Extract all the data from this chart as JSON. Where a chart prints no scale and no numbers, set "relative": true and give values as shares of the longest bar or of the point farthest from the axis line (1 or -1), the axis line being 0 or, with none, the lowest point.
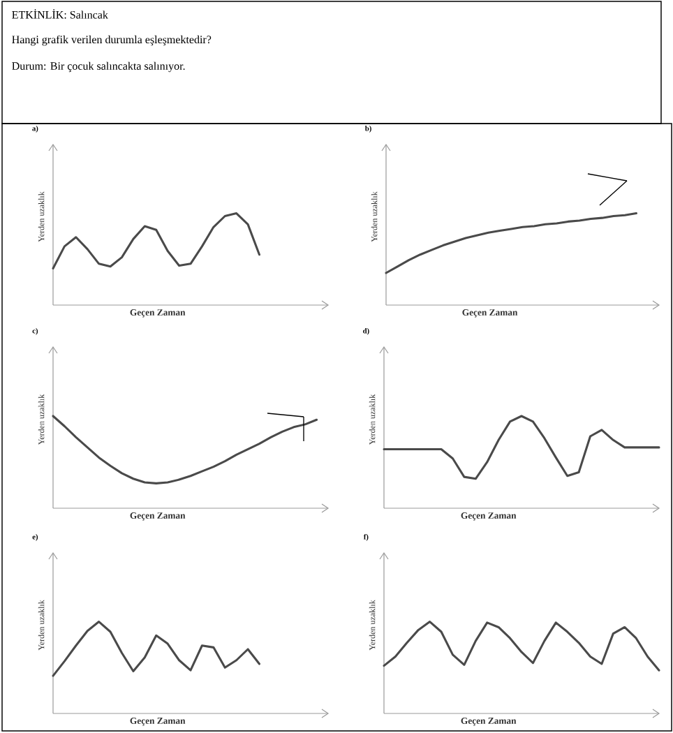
{
  "chart_data": [
    {
      "type": "other",
      "title": "ETKİNLİK: Salıncak",
      "annotations": [
        "Hangi grafik verilen durumla eşleşmektedir?",
        "Durum: Bir çocuk salıncakta salınıyor."
      ]
    },
    {
      "type": "line",
      "title": "a)",
      "xlabel": "Geçen Zaman",
      "ylabel": "Yerden uzaklık",
      "relative": true,
      "tick_labels": false,
      "color": "#4a4a4a",
      "categories": [
        null,
        null,
        null,
        null,
        null,
        null,
        null,
        null,
        null,
        null,
        null,
        null,
        null,
        null,
        null,
        null,
        null,
        null,
        null,
        null,
        null,
        null,
        null,
        null,
        null
      ],
      "values": [
        0.4,
        0.64,
        0.74,
        0.61,
        0.45,
        0.42,
        0.52,
        0.72,
        0.86,
        0.82,
        0.59,
        0.43,
        0.45,
        0.64,
        0.85,
        0.97,
        1.0,
        0.88,
        0.55,
        null,
        null,
        null,
        null,
        null,
        null
      ]
    },
    {
      "type": "line",
      "title": "b)",
      "xlabel": "Geçen Zaman",
      "ylabel": "Yerden uzaklık",
      "relative": true,
      "tick_labels": false,
      "color": "#4a4a4a",
      "categories": [
        null,
        null,
        null,
        null,
        null,
        null,
        null,
        null,
        null,
        null,
        null,
        null,
        null,
        null,
        null,
        null,
        null,
        null,
        null,
        null,
        null,
        null,
        null,
        null,
        null
      ],
      "values": [
        0.35,
        0.42,
        0.49,
        0.55,
        0.6,
        0.65,
        0.69,
        0.73,
        0.76,
        0.79,
        0.81,
        0.83,
        0.85,
        0.86,
        0.88,
        0.89,
        0.91,
        0.92,
        0.94,
        0.95,
        0.97,
        0.98,
        1.0,
        null,
        null
      ]
    },
    {
      "type": "line",
      "title": "c)",
      "xlabel": "Geçen Zaman",
      "ylabel": "Yerden uzaklık",
      "relative": true,
      "tick_labels": false,
      "color": "#4a4a4a",
      "categories": [
        null,
        null,
        null,
        null,
        null,
        null,
        null,
        null,
        null,
        null,
        null,
        null,
        null,
        null,
        null,
        null,
        null,
        null,
        null,
        null,
        null,
        null,
        null,
        null,
        null
      ],
      "values": [
        1.0,
        0.89,
        0.77,
        0.66,
        0.55,
        0.46,
        0.38,
        0.32,
        0.28,
        0.27,
        0.28,
        0.31,
        0.35,
        0.4,
        0.45,
        0.51,
        0.58,
        0.64,
        0.7,
        0.77,
        0.83,
        0.88,
        0.91,
        0.96,
        null
      ]
    },
    {
      "type": "line",
      "title": "d)",
      "xlabel": "Geçen Zaman",
      "ylabel": "Yerden uzaklık",
      "relative": true,
      "tick_labels": false,
      "color": "#4a4a4a",
      "categories": [
        null,
        null,
        null,
        null,
        null,
        null,
        null,
        null,
        null,
        null,
        null,
        null,
        null,
        null,
        null,
        null,
        null,
        null,
        null,
        null,
        null,
        null,
        null,
        null,
        null
      ],
      "values": [
        0.64,
        0.64,
        0.64,
        0.64,
        0.64,
        0.64,
        0.54,
        0.34,
        0.32,
        0.5,
        0.74,
        0.94,
        1.0,
        0.94,
        0.76,
        0.55,
        0.35,
        0.39,
        0.78,
        0.85,
        0.74,
        0.66,
        0.66,
        0.66,
        0.66
      ]
    },
    {
      "type": "line",
      "title": "e)",
      "xlabel": "Geçen Zaman",
      "ylabel": "Yerden uzaklık",
      "relative": true,
      "tick_labels": false,
      "color": "#4a4a4a",
      "categories": [
        null,
        null,
        null,
        null,
        null,
        null,
        null,
        null,
        null,
        null,
        null,
        null,
        null,
        null,
        null,
        null,
        null,
        null,
        null,
        null,
        null,
        null,
        null,
        null,
        null
      ],
      "values": [
        0.41,
        0.57,
        0.74,
        0.9,
        1.0,
        0.89,
        0.66,
        0.46,
        0.61,
        0.85,
        0.76,
        0.58,
        0.47,
        0.74,
        0.72,
        0.5,
        0.58,
        0.7,
        0.54,
        null,
        null,
        null,
        null,
        null,
        null
      ]
    },
    {
      "type": "line",
      "title": "f)",
      "xlabel": "Geçen Zaman",
      "ylabel": "Yerden uzaklık",
      "relative": true,
      "tick_labels": false,
      "color": "#4a4a4a",
      "categories": [
        null,
        null,
        null,
        null,
        null,
        null,
        null,
        null,
        null,
        null,
        null,
        null,
        null,
        null,
        null,
        null,
        null,
        null,
        null,
        null,
        null,
        null,
        null,
        null,
        null
      ],
      "values": [
        0.52,
        0.62,
        0.77,
        0.91,
        1.0,
        0.89,
        0.64,
        0.53,
        0.79,
        0.99,
        0.94,
        0.82,
        0.67,
        0.55,
        0.79,
        0.99,
        0.89,
        0.77,
        0.62,
        0.54,
        0.87,
        0.94,
        0.82,
        0.62,
        0.47
      ]
    }
  ]
}
